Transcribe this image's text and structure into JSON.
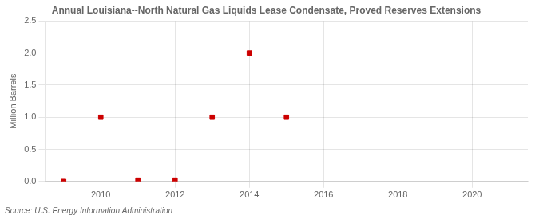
{
  "chart_data": {
    "type": "scatter",
    "title": "Annual Louisiana--North Natural Gas Liquids Lease Condensate, Proved Reserves Extensions",
    "ylabel": "Million Barrels",
    "annotation": "Source: U.S. Energy Information Administration",
    "x": [
      2009,
      2010,
      2011,
      2012,
      2013,
      2014,
      2015
    ],
    "values": [
      0.0,
      1.0,
      0.02,
      0.02,
      1.0,
      2.0,
      1.0
    ],
    "color": "#cc0000",
    "marker": "square",
    "xlim": [
      2008.5,
      2021.5
    ],
    "xticks": [
      2010,
      2012,
      2014,
      2016,
      2018,
      2020
    ],
    "ylim": [
      0,
      2.5
    ],
    "yticks": [
      {
        "value": 0,
        "label": "0.0"
      },
      0.5,
      {
        "value": 1,
        "label": "1.0"
      },
      1.5,
      {
        "value": 2,
        "label": "2.0"
      },
      2.5
    ],
    "grid": true
  }
}
